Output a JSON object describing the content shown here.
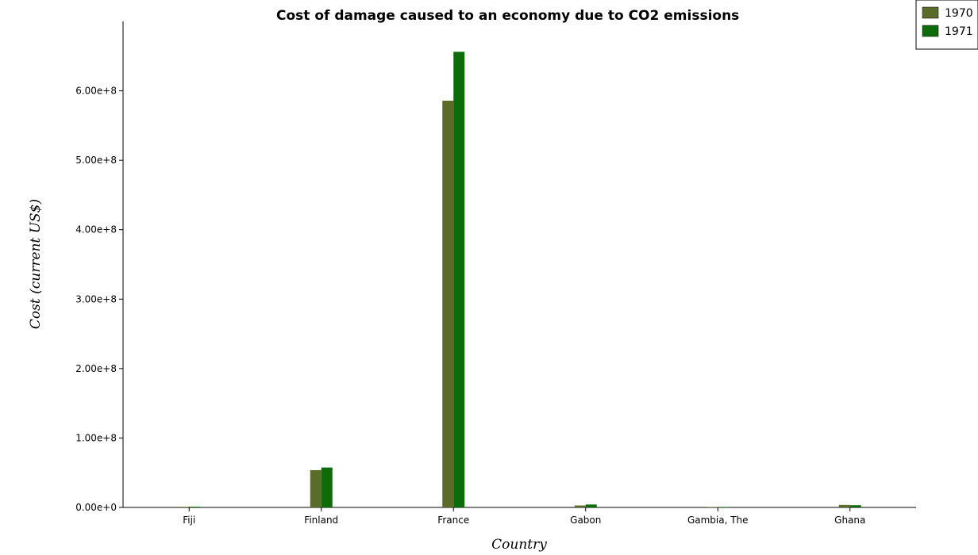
{
  "chart_data": {
    "type": "bar",
    "title": "Cost of damage caused to an economy due to CO2 emissions",
    "xlabel": "Country",
    "ylabel": "Cost (current US$)",
    "categories": [
      "Fiji",
      "Finland",
      "France",
      "Gabon",
      "Gambia, The",
      "Ghana"
    ],
    "series": [
      {
        "name": "1970",
        "color": "#5b6b2a",
        "values": [
          900000,
          53700000,
          585800000,
          2800000,
          100000,
          3600000
        ]
      },
      {
        "name": "1971",
        "color": "#0d6b0a",
        "values": [
          1000000,
          57500000,
          656200000,
          4200000,
          150000,
          3200000
        ]
      }
    ],
    "ylim": [
      0,
      700000000
    ],
    "yticks": [
      0,
      100000000,
      200000000,
      300000000,
      400000000,
      500000000,
      600000000
    ],
    "ytick_labels": [
      "0.00e+0",
      "1.00e+8",
      "2.00e+8",
      "3.00e+8",
      "4.00e+8",
      "5.00e+8",
      "6.00e+8"
    ],
    "legend_position": "top-right",
    "grid": false
  }
}
